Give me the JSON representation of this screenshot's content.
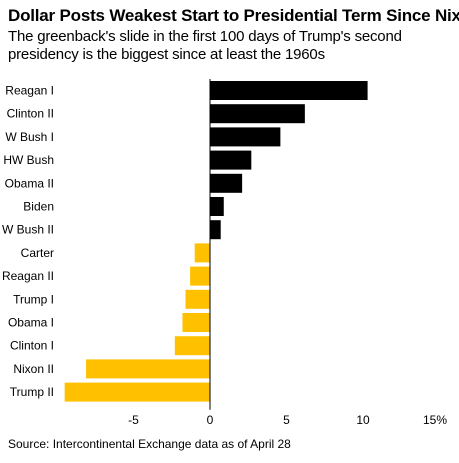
{
  "header": {
    "title": "Dollar Posts Weakest Start to Presidential Term Since Nixon",
    "subtitle": "The greenback's slide in the first 100 days of Trump's second presidency is the biggest since at least the 1960s"
  },
  "footer": {
    "source": "Source: Intercontinental Exchange data as of April 28"
  },
  "colors": {
    "positive": "#000000",
    "negative": "#FFC000",
    "axis": "#000000"
  },
  "chart_data": {
    "type": "bar",
    "orientation": "horizontal",
    "categories": [
      "Reagan I",
      "Clinton II",
      "W Bush I",
      "HW Bush",
      "Obama II",
      "Biden",
      "W Bush II",
      "Carter",
      "Reagan II",
      "Trump I",
      "Obama I",
      "Clinton I",
      "Nixon II",
      "Trump II"
    ],
    "values": [
      10.3,
      6.2,
      4.6,
      2.7,
      2.1,
      0.9,
      0.7,
      -1.0,
      -1.3,
      -1.6,
      -1.8,
      -2.3,
      -8.1,
      -9.5
    ],
    "xlim": [
      -10,
      15
    ],
    "xticks": [
      -5,
      0,
      5,
      10
    ],
    "xtick_labels": [
      "-5",
      "0",
      "5",
      "10",
      "15%"
    ],
    "xtick_label_values": [
      -5,
      0,
      5,
      10,
      15
    ],
    "grid": false
  }
}
